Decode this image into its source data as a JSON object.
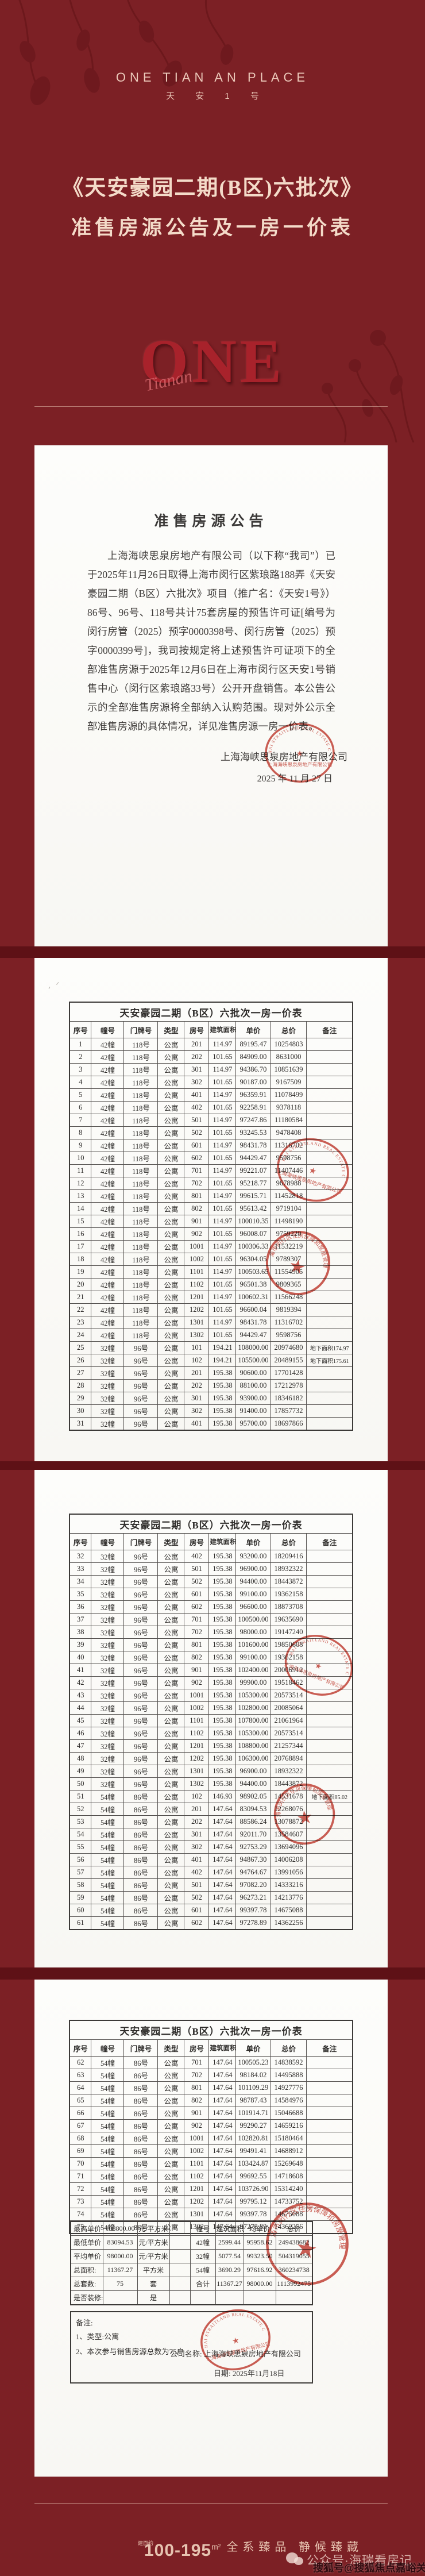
{
  "header": {
    "brand_en": "ONE TIAN AN PLACE",
    "brand_cn": "天 安 1 号",
    "title_line1": "《天安豪园二期(B区)六批次》",
    "title_line2": "准售房源公告及一房一价表",
    "emblem": "ONE",
    "emblem_script": "Tianan"
  },
  "colors": {
    "background_red": "#7c2025",
    "band_dark_red": "#5e1116",
    "title_cream": "#f4dbc9",
    "seal_red": "#c23c30"
  },
  "announcement": {
    "title": "准售房源公告",
    "body": "上海海峡思泉房地产有限公司（以下称“我司”）已于2025年11月26日取得上海市闵行区紫琅路188弄《天安豪园二期（B区）六批次》项目（推广名：《天安1号》）86号、96号、118号共计75套房屋的预售许可证[编号为闵行房管（2025）预字0000398号、闵行房管（2025）预字0000399号]，我司按规定将上述预售许可证项下的全部准售房源于2025年12月6日在上海市闵行区天安1号销售中心（闵行区紫琅路33号）公开开盘销售。本公告公示的全部准售房源将全部纳入认购范围。现对外公示全部准售房源的具体情况，详见准售房源一房一价表。",
    "signature": "上海海峡思泉房地产有限公司",
    "date": "2025 年 11 月 27 日"
  },
  "price_tables": {
    "title": "天安豪园二期（B区）六批次一房一价表",
    "columns": [
      "序号",
      "幢号",
      "门牌号",
      "类型",
      "房号",
      "建筑面积",
      "单价",
      "总价",
      "备注"
    ],
    "pages": [
      {
        "rows": [
          [
            "1",
            "42幢",
            "118号",
            "公寓",
            "201",
            "114.97",
            "89195.47",
            "10254803",
            ""
          ],
          [
            "2",
            "42幢",
            "118号",
            "公寓",
            "202",
            "101.65",
            "84909.00",
            "8631000",
            ""
          ],
          [
            "3",
            "42幢",
            "118号",
            "公寓",
            "301",
            "114.97",
            "94386.70",
            "10851639",
            ""
          ],
          [
            "4",
            "42幢",
            "118号",
            "公寓",
            "302",
            "101.65",
            "90187.00",
            "9167509",
            ""
          ],
          [
            "5",
            "42幢",
            "118号",
            "公寓",
            "401",
            "114.97",
            "96359.91",
            "11078499",
            ""
          ],
          [
            "6",
            "42幢",
            "118号",
            "公寓",
            "402",
            "101.65",
            "92258.91",
            "9378118",
            ""
          ],
          [
            "7",
            "42幢",
            "118号",
            "公寓",
            "501",
            "114.97",
            "97247.86",
            "11180584",
            ""
          ],
          [
            "8",
            "42幢",
            "118号",
            "公寓",
            "502",
            "101.65",
            "93245.53",
            "9478408",
            ""
          ],
          [
            "9",
            "42幢",
            "118号",
            "公寓",
            "601",
            "114.97",
            "98431.78",
            "11316702",
            ""
          ],
          [
            "10",
            "42幢",
            "118号",
            "公寓",
            "602",
            "101.65",
            "94429.47",
            "9598756",
            ""
          ],
          [
            "11",
            "42幢",
            "118号",
            "公寓",
            "701",
            "114.97",
            "99221.07",
            "11407446",
            ""
          ],
          [
            "12",
            "42幢",
            "118号",
            "公寓",
            "702",
            "101.65",
            "95218.77",
            "9678988",
            ""
          ],
          [
            "13",
            "42幢",
            "118号",
            "公寓",
            "801",
            "114.97",
            "99615.71",
            "11452818",
            ""
          ],
          [
            "14",
            "42幢",
            "118号",
            "公寓",
            "802",
            "101.65",
            "95613.42",
            "9719104",
            ""
          ],
          [
            "15",
            "42幢",
            "118号",
            "公寓",
            "901",
            "114.97",
            "100010.35",
            "11498190",
            ""
          ],
          [
            "16",
            "42幢",
            "118号",
            "公寓",
            "902",
            "101.65",
            "96008.07",
            "9759220",
            ""
          ],
          [
            "17",
            "42幢",
            "118号",
            "公寓",
            "1001",
            "114.97",
            "100306.33",
            "11532219",
            ""
          ],
          [
            "18",
            "42幢",
            "118号",
            "公寓",
            "1002",
            "101.65",
            "96304.05",
            "9789307",
            ""
          ],
          [
            "19",
            "42幢",
            "118号",
            "公寓",
            "1101",
            "114.97",
            "100503.65",
            "11554905",
            ""
          ],
          [
            "20",
            "42幢",
            "118号",
            "公寓",
            "1102",
            "101.65",
            "96501.38",
            "9809365",
            ""
          ],
          [
            "21",
            "42幢",
            "118号",
            "公寓",
            "1201",
            "114.97",
            "100602.31",
            "11566248",
            ""
          ],
          [
            "22",
            "42幢",
            "118号",
            "公寓",
            "1202",
            "101.65",
            "96600.04",
            "9819394",
            ""
          ],
          [
            "23",
            "42幢",
            "118号",
            "公寓",
            "1301",
            "114.97",
            "98431.78",
            "11316702",
            ""
          ],
          [
            "24",
            "42幢",
            "118号",
            "公寓",
            "1302",
            "101.65",
            "94429.47",
            "9598756",
            ""
          ],
          [
            "25",
            "32幢",
            "96号",
            "公寓",
            "101",
            "194.21",
            "108000.00",
            "20974680",
            "地下面积174.97"
          ],
          [
            "26",
            "32幢",
            "96号",
            "公寓",
            "102",
            "194.21",
            "105500.00",
            "20489155",
            "地下面积175.61"
          ],
          [
            "27",
            "32幢",
            "96号",
            "公寓",
            "201",
            "195.38",
            "90600.00",
            "17701428",
            ""
          ],
          [
            "28",
            "32幢",
            "96号",
            "公寓",
            "202",
            "195.38",
            "88100.00",
            "17212978",
            ""
          ],
          [
            "29",
            "32幢",
            "96号",
            "公寓",
            "301",
            "195.38",
            "93900.00",
            "18346182",
            ""
          ],
          [
            "30",
            "32幢",
            "96号",
            "公寓",
            "302",
            "195.38",
            "91400.00",
            "17857732",
            ""
          ],
          [
            "31",
            "32幢",
            "96号",
            "公寓",
            "401",
            "195.38",
            "95700.00",
            "18697866",
            ""
          ]
        ]
      },
      {
        "rows": [
          [
            "32",
            "32幢",
            "96号",
            "公寓",
            "402",
            "195.38",
            "93200.00",
            "18209416",
            ""
          ],
          [
            "33",
            "32幢",
            "96号",
            "公寓",
            "501",
            "195.38",
            "96900.00",
            "18932322",
            ""
          ],
          [
            "34",
            "32幢",
            "96号",
            "公寓",
            "502",
            "195.38",
            "94400.00",
            "18443872",
            ""
          ],
          [
            "35",
            "32幢",
            "96号",
            "公寓",
            "601",
            "195.38",
            "99100.00",
            "19362158",
            ""
          ],
          [
            "36",
            "32幢",
            "96号",
            "公寓",
            "602",
            "195.38",
            "96600.00",
            "18873708",
            ""
          ],
          [
            "37",
            "32幢",
            "96号",
            "公寓",
            "701",
            "195.38",
            "100500.00",
            "19635690",
            ""
          ],
          [
            "38",
            "32幢",
            "96号",
            "公寓",
            "702",
            "195.38",
            "98000.00",
            "19147240",
            ""
          ],
          [
            "39",
            "32幢",
            "96号",
            "公寓",
            "801",
            "195.38",
            "101600.00",
            "19850608",
            ""
          ],
          [
            "40",
            "32幢",
            "96号",
            "公寓",
            "802",
            "195.38",
            "99100.00",
            "19362158",
            ""
          ],
          [
            "41",
            "32幢",
            "96号",
            "公寓",
            "901",
            "195.38",
            "102400.00",
            "20006912",
            ""
          ],
          [
            "42",
            "32幢",
            "96号",
            "公寓",
            "902",
            "195.38",
            "99900.00",
            "19518462",
            ""
          ],
          [
            "43",
            "32幢",
            "96号",
            "公寓",
            "1001",
            "195.38",
            "105300.00",
            "20573514",
            ""
          ],
          [
            "44",
            "32幢",
            "96号",
            "公寓",
            "1002",
            "195.38",
            "102800.00",
            "20085064",
            ""
          ],
          [
            "45",
            "32幢",
            "96号",
            "公寓",
            "1101",
            "195.38",
            "107800.00",
            "21061964",
            ""
          ],
          [
            "46",
            "32幢",
            "96号",
            "公寓",
            "1102",
            "195.38",
            "105300.00",
            "20573514",
            ""
          ],
          [
            "47",
            "32幢",
            "96号",
            "公寓",
            "1201",
            "195.38",
            "108800.00",
            "21257344",
            ""
          ],
          [
            "48",
            "32幢",
            "96号",
            "公寓",
            "1202",
            "195.38",
            "106300.00",
            "20768894",
            ""
          ],
          [
            "49",
            "32幢",
            "96号",
            "公寓",
            "1301",
            "195.38",
            "96900.00",
            "18932322",
            ""
          ],
          [
            "50",
            "32幢",
            "96号",
            "公寓",
            "1302",
            "195.38",
            "94400.00",
            "18443872",
            ""
          ],
          [
            "51",
            "54幢",
            "86号",
            "公寓",
            "102",
            "146.93",
            "98902.05",
            "14531678",
            "地下面积85.02"
          ],
          [
            "52",
            "54幢",
            "86号",
            "公寓",
            "201",
            "147.64",
            "83094.53",
            "12268076",
            ""
          ],
          [
            "53",
            "54幢",
            "86号",
            "公寓",
            "202",
            "147.64",
            "88586.24",
            "13078872",
            ""
          ],
          [
            "54",
            "54幢",
            "86号",
            "公寓",
            "301",
            "147.64",
            "92011.70",
            "13584607",
            ""
          ],
          [
            "55",
            "54幢",
            "86号",
            "公寓",
            "302",
            "147.64",
            "92753.29",
            "13694096",
            ""
          ],
          [
            "56",
            "54幢",
            "86号",
            "公寓",
            "401",
            "147.64",
            "94867.30",
            "14006208",
            ""
          ],
          [
            "57",
            "54幢",
            "86号",
            "公寓",
            "402",
            "147.64",
            "94764.67",
            "13991056",
            ""
          ],
          [
            "58",
            "54幢",
            "86号",
            "公寓",
            "501",
            "147.64",
            "97082.20",
            "14333216",
            ""
          ],
          [
            "59",
            "54幢",
            "86号",
            "公寓",
            "502",
            "147.64",
            "96273.21",
            "14213776",
            ""
          ],
          [
            "60",
            "54幢",
            "86号",
            "公寓",
            "601",
            "147.64",
            "99397.78",
            "14675088",
            ""
          ],
          [
            "61",
            "54幢",
            "86号",
            "公寓",
            "602",
            "147.64",
            "97278.89",
            "14362256",
            ""
          ]
        ]
      },
      {
        "rows": [
          [
            "62",
            "54幢",
            "86号",
            "公寓",
            "701",
            "147.64",
            "100505.23",
            "14838592",
            ""
          ],
          [
            "63",
            "54幢",
            "86号",
            "公寓",
            "702",
            "147.64",
            "98184.02",
            "14495888",
            ""
          ],
          [
            "64",
            "54幢",
            "86号",
            "公寓",
            "801",
            "147.64",
            "101109.29",
            "14927776",
            ""
          ],
          [
            "65",
            "54幢",
            "86号",
            "公寓",
            "802",
            "147.64",
            "98787.43",
            "14584976",
            ""
          ],
          [
            "66",
            "54幢",
            "86号",
            "公寓",
            "901",
            "147.64",
            "101914.71",
            "15046688",
            ""
          ],
          [
            "67",
            "54幢",
            "86号",
            "公寓",
            "902",
            "147.64",
            "99290.27",
            "14659216",
            ""
          ],
          [
            "68",
            "54幢",
            "86号",
            "公寓",
            "1001",
            "147.64",
            "102820.81",
            "15180464",
            ""
          ],
          [
            "69",
            "54幢",
            "86号",
            "公寓",
            "1002",
            "147.64",
            "99491.41",
            "14688912",
            ""
          ],
          [
            "70",
            "54幢",
            "86号",
            "公寓",
            "1101",
            "147.64",
            "103424.87",
            "15269648",
            ""
          ],
          [
            "71",
            "54幢",
            "86号",
            "公寓",
            "1102",
            "147.64",
            "99692.55",
            "14718608",
            ""
          ],
          [
            "72",
            "54幢",
            "86号",
            "公寓",
            "1201",
            "147.64",
            "103726.90",
            "15314240",
            ""
          ],
          [
            "73",
            "54幢",
            "86号",
            "公寓",
            "1202",
            "147.64",
            "99795.12",
            "14733752",
            ""
          ],
          [
            "74",
            "54幢",
            "86号",
            "公寓",
            "1301",
            "147.64",
            "99397.78",
            "14675088",
            ""
          ],
          [
            "75",
            "54幢",
            "86号",
            "公寓",
            "1302",
            "147.64",
            "97278.89",
            "14362256",
            ""
          ]
        ]
      }
    ]
  },
  "summary": {
    "rows": [
      [
        "最高单价",
        "108800.00",
        "元/平方米",
        "",
        "幢号",
        "建筑面积",
        "均单价",
        "总价"
      ],
      [
        "最低单价",
        "83094.53",
        "元/平方米",
        "",
        "42幢",
        "2599.44",
        "95958.62",
        "249438682"
      ],
      [
        "平均单价",
        "98000.00",
        "元/平方米",
        "",
        "32幢",
        "5077.54",
        "99323.50",
        "504319055"
      ],
      [
        "总面积:",
        "11367.27",
        "平方米",
        "",
        "54幢",
        "3690.29",
        "97616.92",
        "360234738"
      ],
      [
        "总套数:",
        "75",
        "套",
        "",
        "合计",
        "11367.27",
        "98000.00",
        "1113992475"
      ],
      [
        "是否装修:",
        "",
        "是",
        "",
        "",
        "",
        "",
        ""
      ]
    ]
  },
  "notes": {
    "label": "备注:",
    "item1": "1、类型:公寓",
    "item2": "2、本次参与销售房源总数为75户",
    "company_line": "公司名称:  上海海峡思泉房地产有限公司",
    "date_line": "日期:  2025年11月18日"
  },
  "seals": {
    "company_en": "SHANGHAI STRAITLAND REAL ESTATE CO., LTD.",
    "company_cn": "上海海峡思泉房地产有限公司",
    "authority_cn": "上海市闵行区住房保障和房屋管理局"
  },
  "footer": {
    "area_prefix": "建面约",
    "area_range": "100-195",
    "area_unit": "m²",
    "slogan": "全系臻品  静候臻藏"
  },
  "watermarks": {
    "wechat": "公众号·海瑞看房记",
    "sohu": "搜狐号@搜狐焦点嘉峪关站"
  }
}
